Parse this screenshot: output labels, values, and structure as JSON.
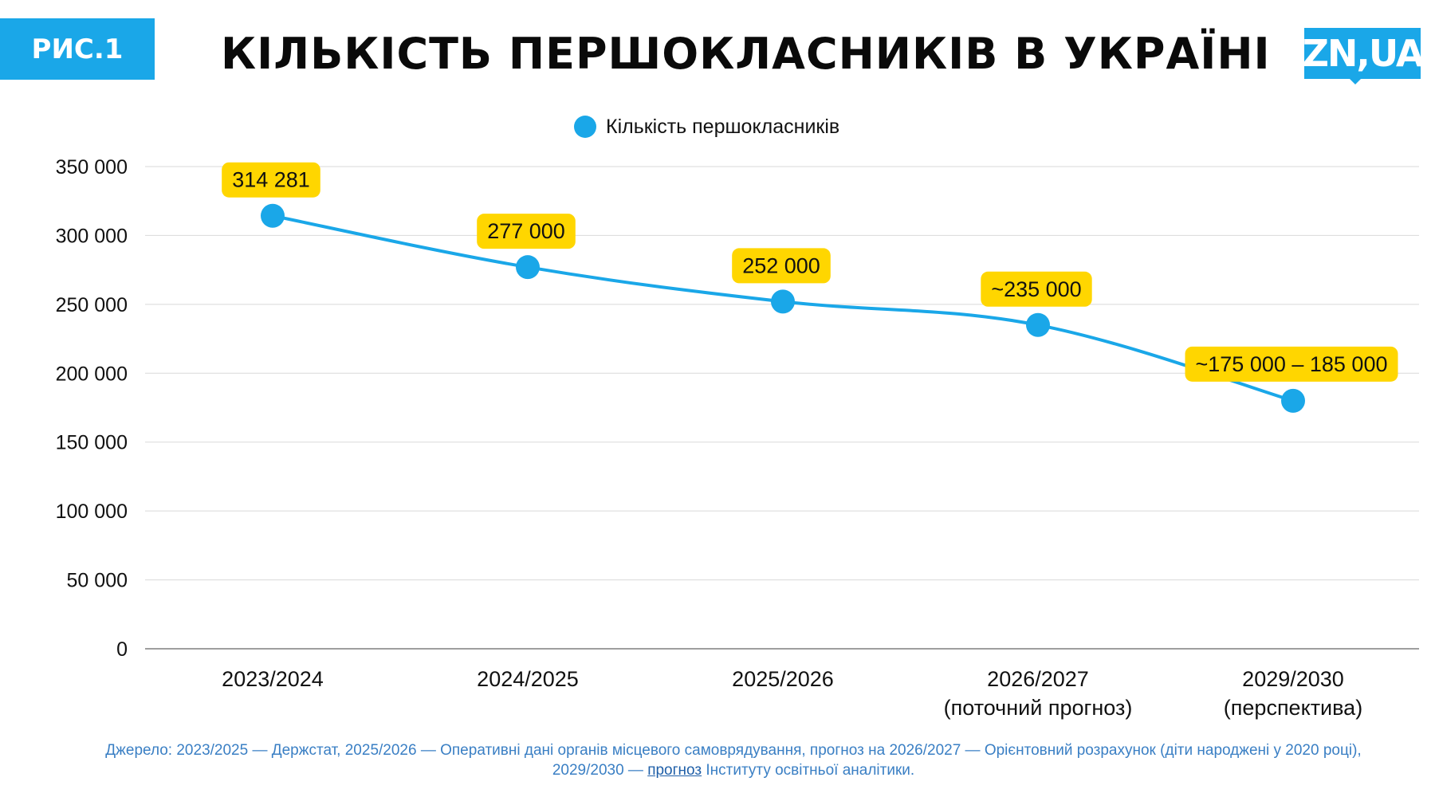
{
  "header": {
    "figure_label": "РИС.1",
    "title": "КІЛЬКІСТЬ ПЕРШОКЛАСНИКІВ В УКРАЇНІ",
    "logo_text": "ZN,UA"
  },
  "colors": {
    "accent": "#1aa7e8",
    "label_background": "#ffd600",
    "grid": "#d9d9d9",
    "source_text": "#3a7fc4"
  },
  "chart_data": {
    "type": "line",
    "title": "КІЛЬКІСТЬ ПЕРШОКЛАСНИКІВ В УКРАЇНІ",
    "legend": {
      "placement": "top-center",
      "entries": [
        "Кількість першокласників"
      ]
    },
    "categories": [
      "2023/2024",
      "2024/2025",
      "2025/2026",
      "2026/2027",
      "2029/2030"
    ],
    "category_sublabels": [
      "",
      "",
      "",
      "(поточний прогноз)",
      "(перспектива)"
    ],
    "series": [
      {
        "name": "Кількість першокласників",
        "values": [
          314281,
          277000,
          252000,
          235000,
          180000
        ],
        "data_labels": [
          "314 281",
          "277 000",
          "252 000",
          "~235 000",
          "~175 000 – 185 000"
        ]
      }
    ],
    "ylim": [
      0,
      350000
    ],
    "yticks": [
      0,
      50000,
      100000,
      150000,
      200000,
      250000,
      300000,
      350000
    ],
    "ytick_labels": [
      "0",
      "50 000",
      "100 000",
      "150 000",
      "200 000",
      "250 000",
      "300 000",
      "350 000"
    ],
    "grid": true,
    "xlabel": "",
    "ylabel": ""
  },
  "source": {
    "text_before": "Джерело: 2023/2025 — Держстат, 2025/2026 — Оперативні дані органів місцевого самоврядування, прогноз на 2026/2027 — Орієнтовний розрахунок (діти народжені у 2020 році), 2029/2030 — ",
    "link_text": "прогноз",
    "text_after": " Інституту освітньої аналітики."
  }
}
